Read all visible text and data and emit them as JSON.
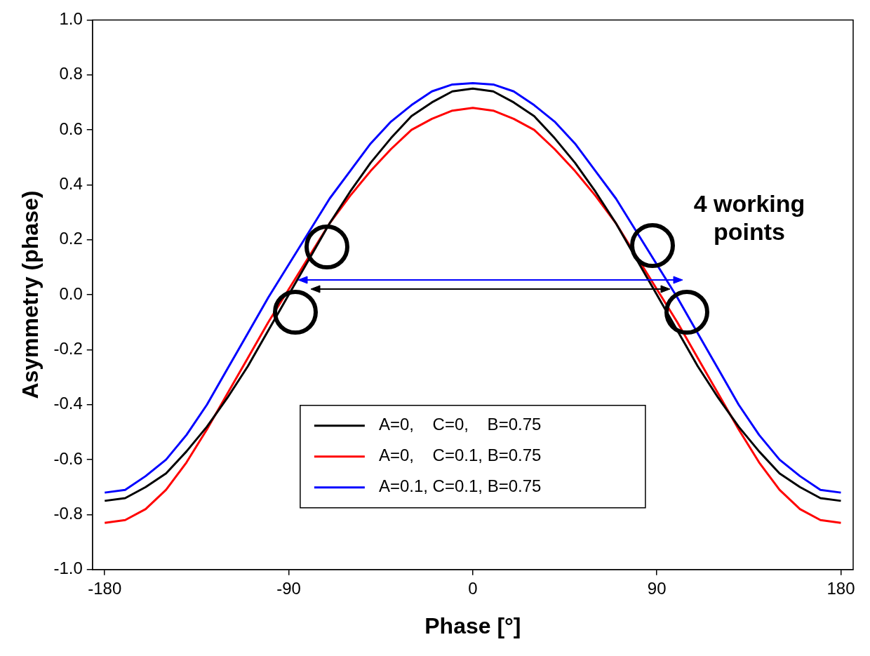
{
  "chart_data": {
    "type": "line",
    "xlabel": "Phase [°]",
    "ylabel": "Asymmetry (phase)",
    "xlim": [
      -186,
      186
    ],
    "ylim": [
      -1,
      1
    ],
    "xticks": [
      -180,
      -90,
      0,
      90,
      180
    ],
    "yticks": [
      {
        "value": -1,
        "label": "-1.0"
      },
      {
        "value": -0.8,
        "label": "-0.8"
      },
      {
        "value": -0.6,
        "label": "-0.6"
      },
      {
        "value": -0.4,
        "label": "-0.4"
      },
      {
        "value": -0.2,
        "label": "-0.2"
      },
      {
        "value": 0,
        "label": "0.0"
      },
      {
        "value": 0.2,
        "label": "0.2"
      },
      {
        "value": 0.4,
        "label": "0.4"
      },
      {
        "value": 0.6,
        "label": "0.6"
      },
      {
        "value": 0.8,
        "label": "0.8"
      },
      {
        "value": 1,
        "label": "1.0"
      }
    ],
    "x": [
      -180,
      -170,
      -160,
      -150,
      -140,
      -130,
      -120,
      -110,
      -100,
      -90,
      -80,
      -70,
      -60,
      -50,
      -40,
      -30,
      -20,
      -10,
      0,
      10,
      20,
      30,
      40,
      50,
      60,
      70,
      80,
      90,
      100,
      110,
      120,
      130,
      140,
      150,
      160,
      170,
      180
    ],
    "series": [
      {
        "name": "A=0,    C=0,    B=0.75",
        "color": "#000000",
        "values": [
          -0.75,
          -0.74,
          -0.7,
          -0.65,
          -0.57,
          -0.48,
          -0.375,
          -0.26,
          -0.13,
          0,
          0.13,
          0.26,
          0.375,
          0.48,
          0.57,
          0.65,
          0.7,
          0.74,
          0.75,
          0.74,
          0.7,
          0.65,
          0.57,
          0.48,
          0.375,
          0.26,
          0.13,
          0,
          -0.13,
          -0.26,
          -0.375,
          -0.48,
          -0.57,
          -0.65,
          -0.7,
          -0.74,
          -0.75
        ]
      },
      {
        "name": "A=0,    C=0.1, B=0.75",
        "color": "#ff0000",
        "values": [
          -0.83,
          -0.82,
          -0.78,
          -0.71,
          -0.61,
          -0.49,
          -0.36,
          -0.23,
          -0.1,
          0.02,
          0.14,
          0.26,
          0.36,
          0.45,
          0.53,
          0.6,
          0.64,
          0.67,
          0.68,
          0.67,
          0.64,
          0.6,
          0.53,
          0.45,
          0.36,
          0.26,
          0.14,
          0.02,
          -0.1,
          -0.23,
          -0.36,
          -0.49,
          -0.61,
          -0.71,
          -0.78,
          -0.82,
          -0.83
        ]
      },
      {
        "name": "A=0.1, C=0.1, B=0.75",
        "color": "#0000ff",
        "values": [
          -0.72,
          -0.71,
          -0.66,
          -0.6,
          -0.51,
          -0.4,
          -0.27,
          -0.14,
          -0.01,
          0.11,
          0.23,
          0.35,
          0.45,
          0.55,
          0.63,
          0.69,
          0.74,
          0.765,
          0.77,
          0.765,
          0.74,
          0.69,
          0.63,
          0.55,
          0.45,
          0.35,
          0.23,
          0.11,
          -0.01,
          -0.14,
          -0.27,
          -0.4,
          -0.51,
          -0.6,
          -0.66,
          -0.71,
          -0.72
        ]
      }
    ],
    "legend": "bottom",
    "grid": false,
    "marker": "none",
    "line_style": "solid",
    "annotations": [
      "4 working points"
    ]
  }
}
